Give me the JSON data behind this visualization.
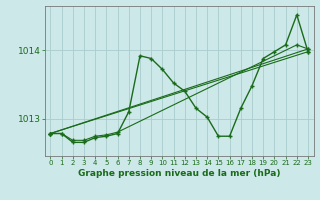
{
  "title": "Graphe pression niveau de la mer (hPa)",
  "bg_color": "#cce8e8",
  "grid_color": "#aacccc",
  "line_color": "#1a6b1a",
  "xlim": [
    -0.5,
    23.5
  ],
  "ylim": [
    1012.45,
    1014.65
  ],
  "yticks": [
    1013,
    1014
  ],
  "xticks": [
    0,
    1,
    2,
    3,
    4,
    5,
    6,
    7,
    8,
    9,
    10,
    11,
    12,
    13,
    14,
    15,
    16,
    17,
    18,
    19,
    20,
    21,
    22,
    23
  ],
  "series": {
    "line1": [
      [
        0,
        1012.78
      ],
      [
        1,
        1012.78
      ],
      [
        2,
        1012.65
      ],
      [
        3,
        1012.65
      ],
      [
        4,
        1012.72
      ],
      [
        5,
        1012.74
      ],
      [
        6,
        1012.78
      ],
      [
        7,
        1013.1
      ],
      [
        8,
        1013.92
      ],
      [
        9,
        1013.88
      ],
      [
        10,
        1013.72
      ],
      [
        11,
        1013.52
      ],
      [
        12,
        1013.4
      ],
      [
        13,
        1013.15
      ],
      [
        14,
        1013.02
      ],
      [
        15,
        1012.74
      ],
      [
        16,
        1012.74
      ],
      [
        17,
        1013.15
      ],
      [
        18,
        1013.48
      ],
      [
        19,
        1013.88
      ],
      [
        20,
        1013.98
      ],
      [
        21,
        1014.08
      ],
      [
        22,
        1014.52
      ],
      [
        23,
        1013.98
      ]
    ],
    "line2": [
      [
        0,
        1012.78
      ],
      [
        1,
        1012.78
      ],
      [
        2,
        1012.68
      ],
      [
        3,
        1012.68
      ],
      [
        4,
        1012.74
      ],
      [
        5,
        1012.76
      ],
      [
        6,
        1012.8
      ],
      [
        22,
        1014.08
      ],
      [
        23,
        1014.02
      ]
    ],
    "line3": [
      [
        0,
        1012.78
      ],
      [
        23,
        1014.02
      ]
    ],
    "line4": [
      [
        0,
        1012.78
      ],
      [
        23,
        1013.98
      ]
    ]
  }
}
